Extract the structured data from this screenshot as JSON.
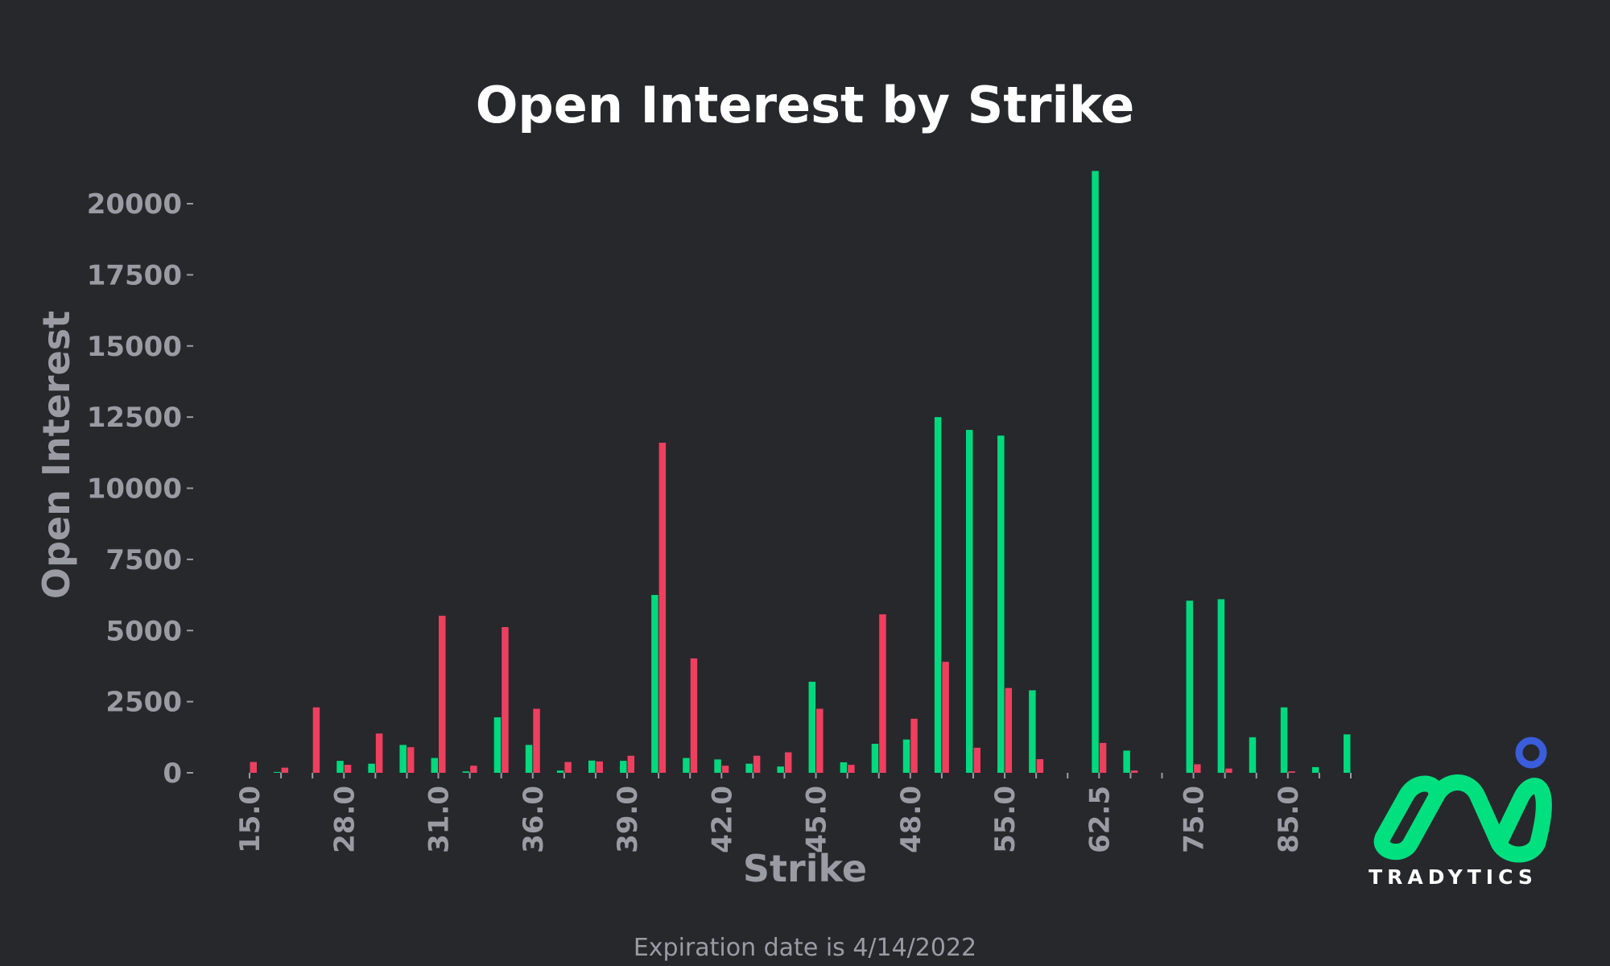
{
  "colors": {
    "background": "#27282c",
    "title": "#ffffff",
    "axis_text": "#9a9ca4",
    "calls": "#00d97e",
    "puts": "#ee3f5f",
    "logo_green": "#00e07f",
    "logo_blue": "#3a5ddc",
    "footnote": "#9a9ca4"
  },
  "logo": {
    "text": "TRADYTICS",
    "icon": "tradytics-logo-icon"
  },
  "footnote": "Expiration date is 4/14/2022",
  "chart_data": {
    "type": "bar",
    "title": "Open Interest by Strike",
    "xlabel": "Strike",
    "ylabel": "Open Interest",
    "ylim": [
      0,
      21500
    ],
    "yticks": [
      0,
      2500,
      5000,
      7500,
      10000,
      12500,
      15000,
      17500,
      20000
    ],
    "grid": false,
    "legend": "none",
    "x_tick_labels": [
      "15.0",
      "28.0",
      "31.0",
      "36.0",
      "39.0",
      "42.0",
      "45.0",
      "48.0",
      "55.0",
      "62.5",
      "75.0",
      "85.0"
    ],
    "x_tick_every": 3,
    "series": [
      {
        "color": "#00d97e",
        "values": [
          0,
          30,
          0,
          420,
          320,
          980,
          520,
          50,
          1950,
          980,
          80,
          430,
          420,
          6250,
          520,
          470,
          320,
          220,
          3200,
          370,
          1020,
          1170,
          12500,
          12050,
          11850,
          2900,
          0,
          21150,
          780,
          0,
          6050,
          6100,
          1250,
          2300,
          200,
          1350
        ]
      },
      {
        "color": "#ee3f5f",
        "values": [
          380,
          180,
          2300,
          280,
          1380,
          900,
          5520,
          250,
          5120,
          2250,
          380,
          400,
          600,
          11600,
          4020,
          250,
          600,
          720,
          2250,
          280,
          5570,
          1900,
          3900,
          880,
          2980,
          480,
          0,
          1050,
          80,
          0,
          300,
          150,
          0,
          50,
          0,
          0
        ]
      }
    ]
  }
}
